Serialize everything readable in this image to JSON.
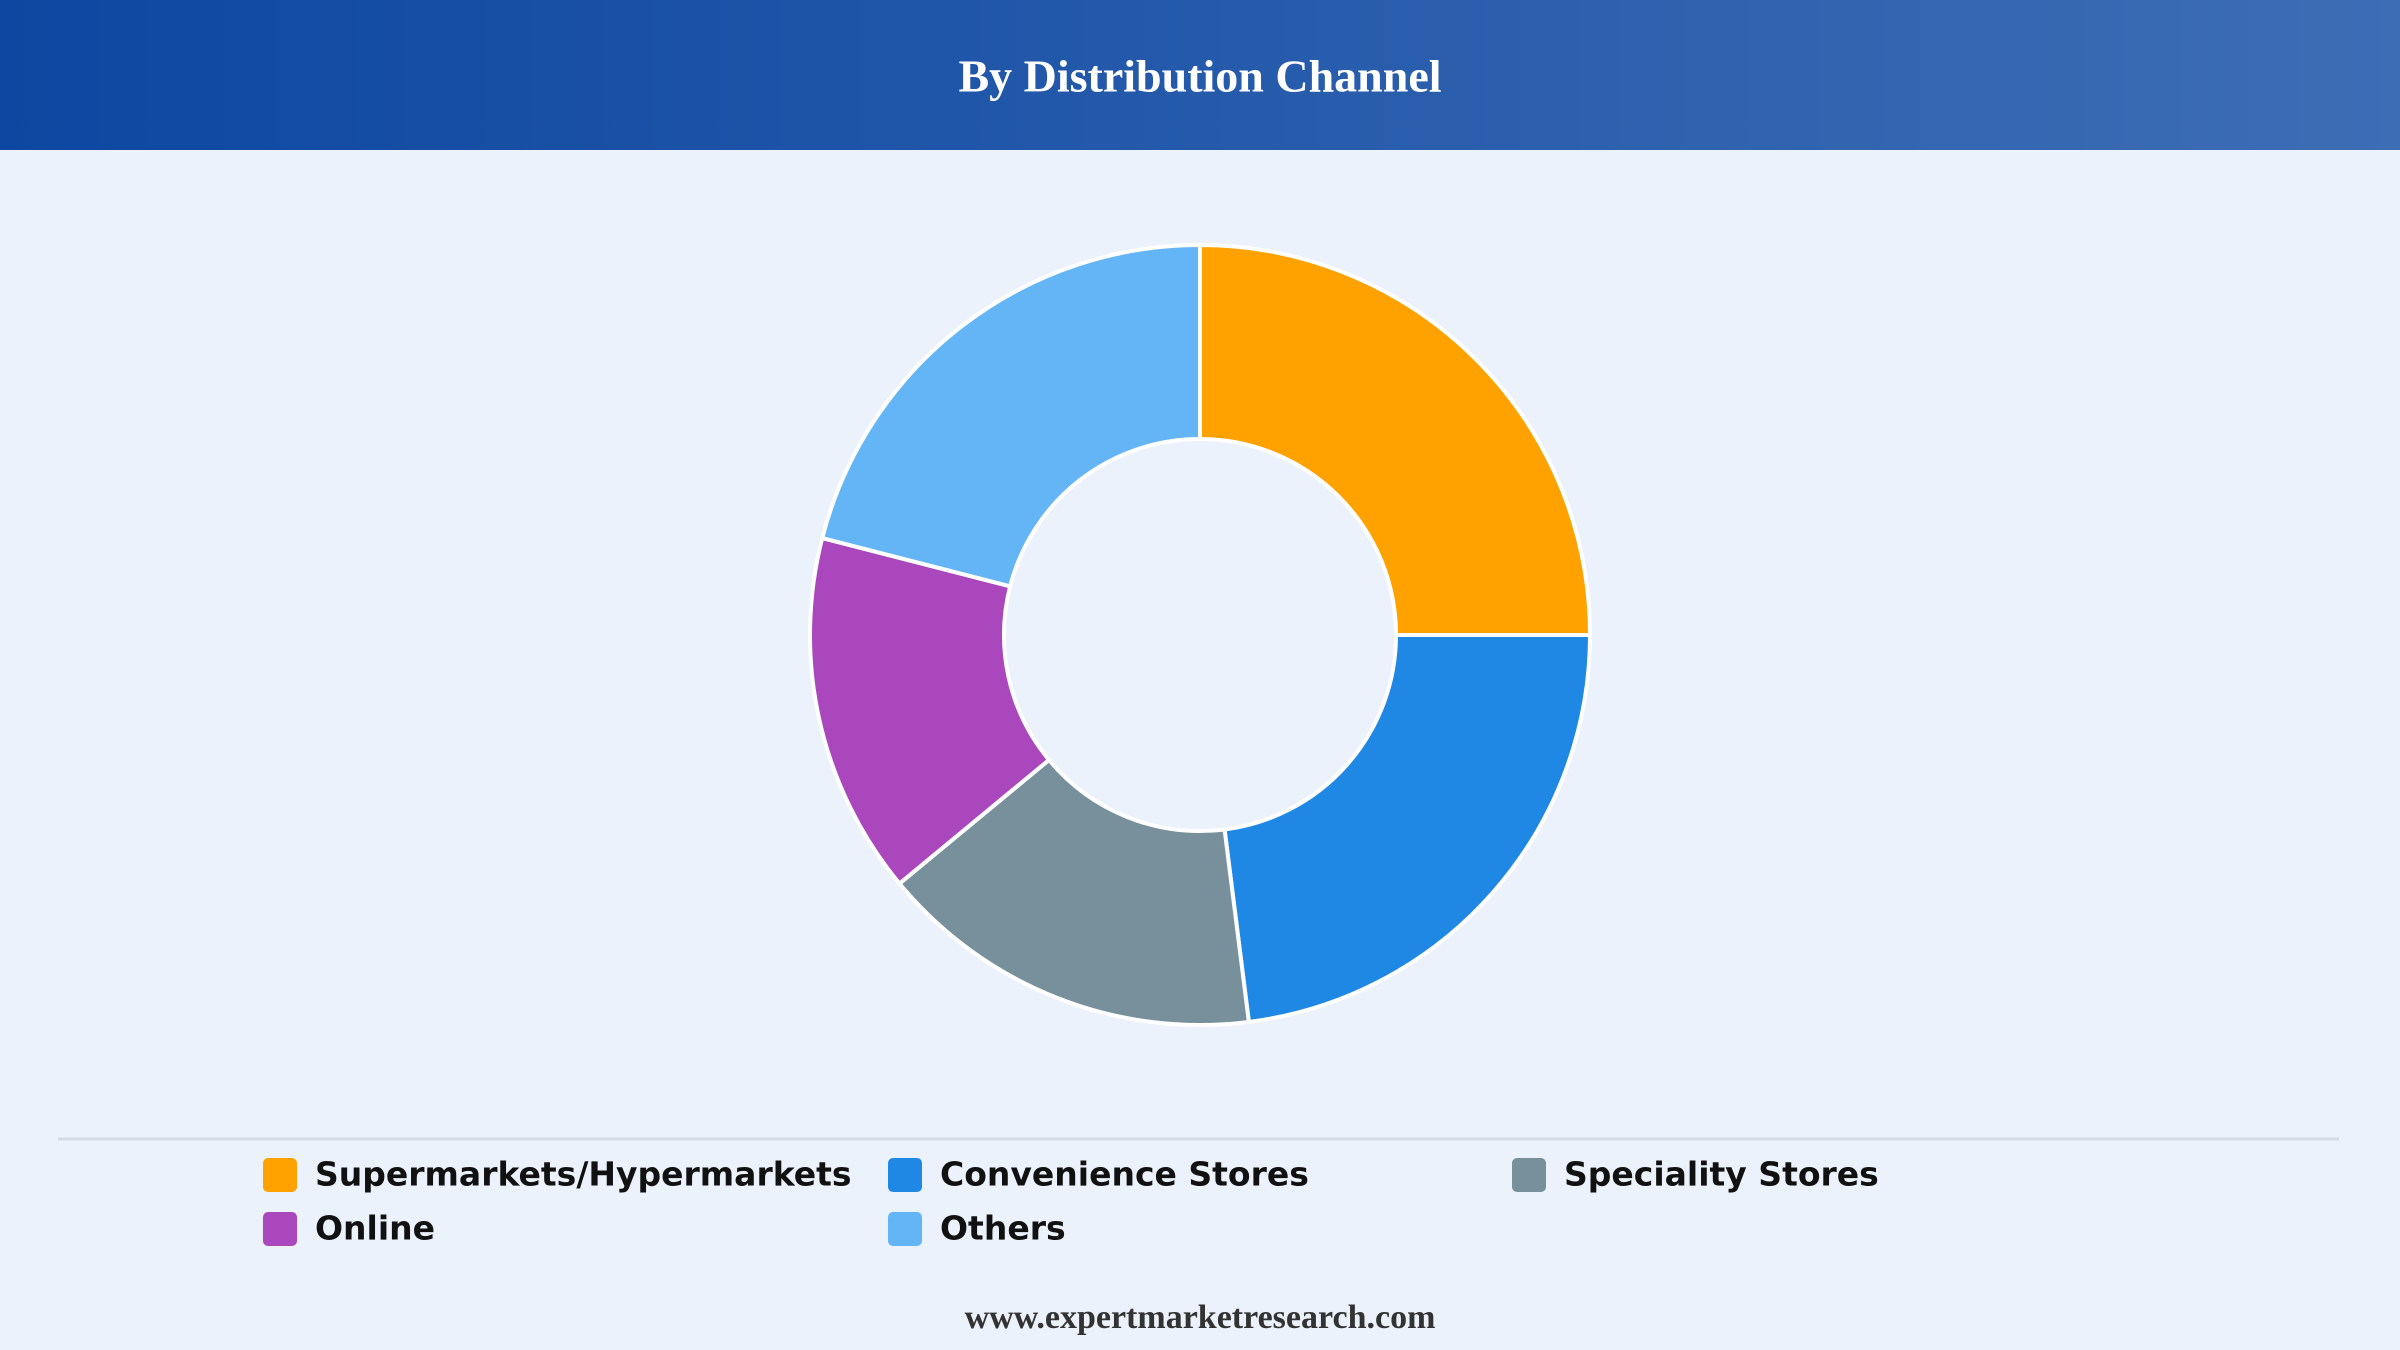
{
  "chart_data": {
    "type": "donut",
    "title": "By Distribution Channel",
    "categories": [
      "Supermarkets/Hypermarkets",
      "Convenience Stores",
      "Speciality Stores",
      "Online",
      "Others"
    ],
    "values": [
      25,
      23,
      16,
      15,
      21
    ],
    "colors": [
      "#ffa200",
      "#1f88e5",
      "#78909c",
      "#ab47bc",
      "#64b5f6"
    ],
    "source": "www.expertmarketresearch.com"
  }
}
